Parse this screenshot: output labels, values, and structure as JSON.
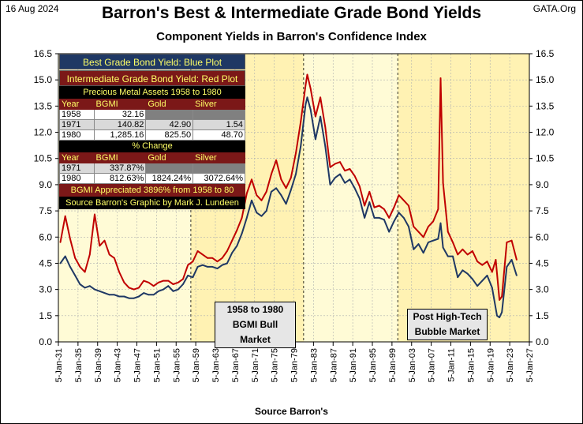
{
  "header": {
    "date": "16 Aug 2024",
    "title": "Barron's Best & Intermediate Grade Bond Yields",
    "subtitle": "Component  Yields in Barron's Confidence Index",
    "brand": "GATA.Org",
    "source": "Source Barron's"
  },
  "info_box": {
    "best_label": "Best Grade Bond Yield: Blue Plot",
    "intermediate_label": "Intermediate Grade Bond Yield: Red Plot",
    "assets_title": "Precious Metal Assets 1958 to 1980",
    "assets_headers": [
      "Year",
      "BGMI",
      "Gold",
      "Silver"
    ],
    "assets_rows": [
      [
        "1958",
        "32.16",
        "",
        ""
      ],
      [
        "1971",
        "140.82",
        "42.90",
        "1.54"
      ],
      [
        "1980",
        "1,285.16",
        "825.50",
        "48.70"
      ]
    ],
    "change_title": "% Change",
    "change_headers": [
      "Year",
      "BGMI",
      "Gold",
      "Silver"
    ],
    "change_rows": [
      [
        "1971",
        "337.87%",
        "",
        ""
      ],
      [
        "1980",
        "812.63%",
        "1824.24%",
        "3072.64%"
      ]
    ],
    "appreciation": "BGMI Appreciated 3896% from 1958 to 80",
    "credit": "Source Barron's  Graphic by Mark J. Lundeen"
  },
  "annotations": {
    "bull_market": [
      "1958 to 1980",
      "BGMI Bull",
      "Market"
    ],
    "bubble_market": [
      "Post High-Tech",
      "Bubble Market"
    ]
  },
  "colors": {
    "best_grade": "#1f3864",
    "intermediate_grade": "#c00000",
    "plot_background": "#fffbd6",
    "shaded_period": "#fff2b3"
  },
  "chart_data": {
    "type": "line",
    "title": "Barron's Best & Intermediate Grade Bond Yields",
    "subtitle": "Component  Yields in Barron's Confidence Index",
    "xlabel": "Source Barron's",
    "ylabel": "",
    "ylim": [
      0,
      16.5
    ],
    "xlim": [
      "1931-01-05",
      "2027-01-05"
    ],
    "y_ticks": [
      "0.0",
      "1.5",
      "3.0",
      "4.5",
      "6.0",
      "7.5",
      "9.0",
      "10.5",
      "12.0",
      "13.5",
      "15.0",
      "16.5"
    ],
    "x_ticks": [
      "5-Jan-31",
      "5-Jan-35",
      "5-Jan-39",
      "5-Jan-43",
      "5-Jan-47",
      "5-Jan-51",
      "5-Jan-55",
      "5-Jan-59",
      "5-Jan-63",
      "5-Jan-67",
      "5-Jan-71",
      "5-Jan-75",
      "5-Jan-79",
      "5-Jan-83",
      "5-Jan-87",
      "5-Jan-91",
      "5-Jan-95",
      "5-Jan-99",
      "5-Jan-03",
      "5-Jan-07",
      "5-Jan-11",
      "5-Jan-15",
      "5-Jan-19",
      "5-Jan-23",
      "5-Jan-27"
    ],
    "shaded_periods": [
      [
        "1958-01-05",
        "1980-12-31"
      ],
      [
        "2000-03-10",
        "2027-01-05"
      ]
    ],
    "grid": true,
    "legend": "top-left",
    "series": [
      {
        "name": "Best Grade Bond Yield: Blue Plot",
        "color": "#1f3864",
        "points": [
          [
            "1931-06-01",
            4.5
          ],
          [
            "1932-06-01",
            4.9
          ],
          [
            "1933-06-01",
            4.3
          ],
          [
            "1934-06-01",
            3.8
          ],
          [
            "1935-06-01",
            3.3
          ],
          [
            "1936-06-01",
            3.1
          ],
          [
            "1937-06-01",
            3.2
          ],
          [
            "1938-06-01",
            3.0
          ],
          [
            "1939-06-01",
            2.9
          ],
          [
            "1940-06-01",
            2.8
          ],
          [
            "1941-06-01",
            2.7
          ],
          [
            "1942-06-01",
            2.7
          ],
          [
            "1943-06-01",
            2.6
          ],
          [
            "1944-06-01",
            2.6
          ],
          [
            "1945-06-01",
            2.5
          ],
          [
            "1946-06-01",
            2.5
          ],
          [
            "1947-06-01",
            2.6
          ],
          [
            "1948-06-01",
            2.8
          ],
          [
            "1949-06-01",
            2.7
          ],
          [
            "1950-06-01",
            2.7
          ],
          [
            "1951-06-01",
            2.9
          ],
          [
            "1952-06-01",
            3.0
          ],
          [
            "1953-06-01",
            3.2
          ],
          [
            "1954-06-01",
            2.9
          ],
          [
            "1955-06-01",
            3.0
          ],
          [
            "1956-06-01",
            3.3
          ],
          [
            "1957-06-01",
            3.8
          ],
          [
            "1958-06-01",
            3.7
          ],
          [
            "1959-06-01",
            4.3
          ],
          [
            "1960-06-01",
            4.4
          ],
          [
            "1961-06-01",
            4.3
          ],
          [
            "1962-06-01",
            4.3
          ],
          [
            "1963-06-01",
            4.2
          ],
          [
            "1964-06-01",
            4.4
          ],
          [
            "1965-06-01",
            4.5
          ],
          [
            "1966-06-01",
            5.1
          ],
          [
            "1967-06-01",
            5.5
          ],
          [
            "1968-06-01",
            6.2
          ],
          [
            "1969-06-01",
            7.1
          ],
          [
            "1970-06-01",
            8.1
          ],
          [
            "1971-06-01",
            7.4
          ],
          [
            "1972-06-01",
            7.2
          ],
          [
            "1973-06-01",
            7.5
          ],
          [
            "1974-06-01",
            8.6
          ],
          [
            "1975-06-01",
            8.8
          ],
          [
            "1976-06-01",
            8.4
          ],
          [
            "1977-06-01",
            7.9
          ],
          [
            "1978-06-01",
            8.7
          ],
          [
            "1979-06-01",
            9.6
          ],
          [
            "1980-06-01",
            11.2
          ],
          [
            "1981-06-01",
            13.6
          ],
          [
            "1981-10-01",
            14.0
          ],
          [
            "1982-06-01",
            13.3
          ],
          [
            "1983-06-01",
            11.6
          ],
          [
            "1984-06-01",
            12.9
          ],
          [
            "1985-06-01",
            11.2
          ],
          [
            "1986-06-01",
            9.0
          ],
          [
            "1987-06-01",
            9.4
          ],
          [
            "1988-06-01",
            9.6
          ],
          [
            "1989-06-01",
            9.1
          ],
          [
            "1990-06-01",
            9.3
          ],
          [
            "1991-06-01",
            8.8
          ],
          [
            "1992-06-01",
            8.2
          ],
          [
            "1993-06-01",
            7.1
          ],
          [
            "1994-06-01",
            8.0
          ],
          [
            "1995-06-01",
            7.1
          ],
          [
            "1996-06-01",
            7.1
          ],
          [
            "1997-06-01",
            7.0
          ],
          [
            "1998-06-01",
            6.3
          ],
          [
            "1999-06-01",
            6.9
          ],
          [
            "2000-06-01",
            7.4
          ],
          [
            "2001-06-01",
            7.1
          ],
          [
            "2002-06-01",
            6.6
          ],
          [
            "2003-06-01",
            5.3
          ],
          [
            "2004-06-01",
            5.6
          ],
          [
            "2005-06-01",
            5.1
          ],
          [
            "2006-06-01",
            5.7
          ],
          [
            "2007-06-01",
            5.8
          ],
          [
            "2008-06-01",
            5.9
          ],
          [
            "2008-12-01",
            6.8
          ],
          [
            "2009-06-01",
            5.4
          ],
          [
            "2010-06-01",
            4.9
          ],
          [
            "2011-06-01",
            4.9
          ],
          [
            "2012-06-01",
            3.7
          ],
          [
            "2013-06-01",
            4.1
          ],
          [
            "2014-06-01",
            3.9
          ],
          [
            "2015-06-01",
            3.6
          ],
          [
            "2016-06-01",
            3.2
          ],
          [
            "2017-06-01",
            3.5
          ],
          [
            "2018-06-01",
            3.8
          ],
          [
            "2019-06-01",
            3.1
          ],
          [
            "2020-06-01",
            1.5
          ],
          [
            "2020-12-01",
            1.4
          ],
          [
            "2021-06-01",
            1.7
          ],
          [
            "2022-06-01",
            4.3
          ],
          [
            "2023-06-01",
            4.7
          ],
          [
            "2024-06-01",
            3.8
          ]
        ]
      },
      {
        "name": "Intermediate Grade Bond Yield: Red Plot",
        "color": "#c00000",
        "points": [
          [
            "1931-06-01",
            5.7
          ],
          [
            "1932-06-01",
            7.2
          ],
          [
            "1933-06-01",
            5.9
          ],
          [
            "1934-06-01",
            4.8
          ],
          [
            "1935-06-01",
            4.3
          ],
          [
            "1936-06-01",
            4.0
          ],
          [
            "1937-06-01",
            5.0
          ],
          [
            "1938-06-01",
            7.3
          ],
          [
            "1939-06-01",
            5.5
          ],
          [
            "1940-06-01",
            5.8
          ],
          [
            "1941-06-01",
            5.0
          ],
          [
            "1942-06-01",
            4.8
          ],
          [
            "1943-06-01",
            4.0
          ],
          [
            "1944-06-01",
            3.4
          ],
          [
            "1945-06-01",
            3.1
          ],
          [
            "1946-06-01",
            3.0
          ],
          [
            "1947-06-01",
            3.1
          ],
          [
            "1948-06-01",
            3.5
          ],
          [
            "1949-06-01",
            3.4
          ],
          [
            "1950-06-01",
            3.2
          ],
          [
            "1951-06-01",
            3.4
          ],
          [
            "1952-06-01",
            3.5
          ],
          [
            "1953-06-01",
            3.5
          ],
          [
            "1954-06-01",
            3.3
          ],
          [
            "1955-06-01",
            3.4
          ],
          [
            "1956-06-01",
            3.6
          ],
          [
            "1957-06-01",
            4.4
          ],
          [
            "1958-06-01",
            4.6
          ],
          [
            "1959-06-01",
            5.2
          ],
          [
            "1960-06-01",
            5.0
          ],
          [
            "1961-06-01",
            4.8
          ],
          [
            "1962-06-01",
            4.8
          ],
          [
            "1963-06-01",
            4.6
          ],
          [
            "1964-06-01",
            4.8
          ],
          [
            "1965-06-01",
            5.2
          ],
          [
            "1966-06-01",
            5.8
          ],
          [
            "1967-06-01",
            6.4
          ],
          [
            "1968-06-01",
            7.1
          ],
          [
            "1969-06-01",
            8.5
          ],
          [
            "1970-06-01",
            9.3
          ],
          [
            "1971-06-01",
            8.4
          ],
          [
            "1972-06-01",
            8.1
          ],
          [
            "1973-06-01",
            8.6
          ],
          [
            "1974-06-01",
            9.6
          ],
          [
            "1975-06-01",
            10.4
          ],
          [
            "1976-06-01",
            9.3
          ],
          [
            "1977-06-01",
            8.8
          ],
          [
            "1978-06-01",
            9.4
          ],
          [
            "1979-06-01",
            10.8
          ],
          [
            "1980-06-01",
            12.6
          ],
          [
            "1981-06-01",
            14.7
          ],
          [
            "1981-10-01",
            15.3
          ],
          [
            "1982-06-01",
            14.5
          ],
          [
            "1983-06-01",
            12.9
          ],
          [
            "1984-06-01",
            14.0
          ],
          [
            "1985-06-01",
            12.3
          ],
          [
            "1986-06-01",
            10.0
          ],
          [
            "1987-06-01",
            10.2
          ],
          [
            "1988-06-01",
            10.3
          ],
          [
            "1989-06-01",
            9.8
          ],
          [
            "1990-06-01",
            9.9
          ],
          [
            "1991-06-01",
            9.5
          ],
          [
            "1992-06-01",
            8.9
          ],
          [
            "1993-06-01",
            7.8
          ],
          [
            "1994-06-01",
            8.6
          ],
          [
            "1995-06-01",
            7.7
          ],
          [
            "1996-06-01",
            7.8
          ],
          [
            "1997-06-01",
            7.6
          ],
          [
            "1998-06-01",
            7.1
          ],
          [
            "1999-06-01",
            7.7
          ],
          [
            "2000-06-01",
            8.4
          ],
          [
            "2001-06-01",
            8.1
          ],
          [
            "2002-06-01",
            7.8
          ],
          [
            "2003-06-01",
            6.6
          ],
          [
            "2004-06-01",
            6.3
          ],
          [
            "2005-06-01",
            6.0
          ],
          [
            "2006-06-01",
            6.6
          ],
          [
            "2007-06-01",
            6.9
          ],
          [
            "2008-06-01",
            7.6
          ],
          [
            "2008-12-01",
            15.1
          ],
          [
            "2009-06-01",
            9.1
          ],
          [
            "2010-06-01",
            6.3
          ],
          [
            "2011-06-01",
            5.7
          ],
          [
            "2012-06-01",
            5.0
          ],
          [
            "2013-06-01",
            5.3
          ],
          [
            "2014-06-01",
            5.0
          ],
          [
            "2015-06-01",
            5.2
          ],
          [
            "2016-06-01",
            4.6
          ],
          [
            "2017-06-01",
            4.4
          ],
          [
            "2018-06-01",
            4.6
          ],
          [
            "2019-06-01",
            4.0
          ],
          [
            "2020-03-01",
            4.7
          ],
          [
            "2020-12-01",
            2.4
          ],
          [
            "2021-06-01",
            2.6
          ],
          [
            "2022-06-01",
            5.7
          ],
          [
            "2023-06-01",
            5.8
          ],
          [
            "2024-06-01",
            4.7
          ]
        ]
      }
    ]
  }
}
